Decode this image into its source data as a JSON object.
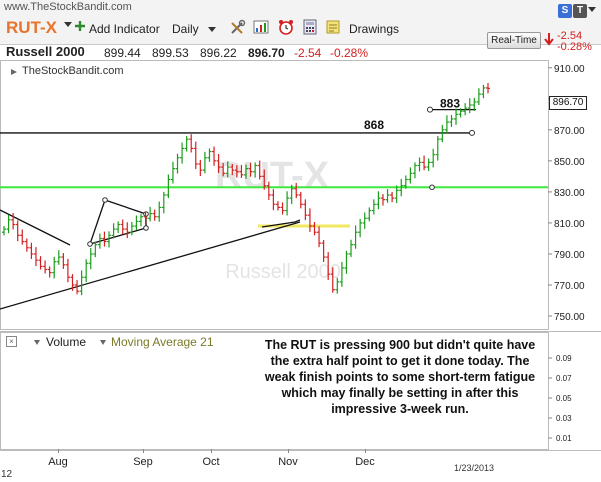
{
  "header": {
    "url": "www.TheStockBandit.com",
    "symbol": "RUT-X",
    "toolbar": {
      "add_indicator": "Add Indicator",
      "period": "Daily",
      "drawings": "Drawings"
    },
    "name": "Russell 2000",
    "open": "899.44",
    "high": "899.53",
    "low": "896.22",
    "last": "896.70",
    "change": "-2.54",
    "change_pct": "-0.28%",
    "realtime_button": "Real-Time",
    "top_icons": [
      "S",
      "T"
    ]
  },
  "chart_watermark": "TheStockBandit.com",
  "background_watermark": {
    "symbol": "RUT-X",
    "name": "Russell 2000"
  },
  "colors": {
    "up": "#1a9e1a",
    "down": "#d42020",
    "support_green": "#3ee83e",
    "support_yellow": "#f0e860",
    "trendline": "#111111"
  },
  "chart_data": {
    "type": "candlestick",
    "y_axis_ticks": [
      "910.00",
      "890.00",
      "870.00",
      "850.00",
      "830.00",
      "810.00",
      "790.00",
      "770.00",
      "750.00"
    ],
    "ylim": [
      741,
      915
    ],
    "last_price_label": "896.70",
    "x_axis_labels": [
      "Aug",
      "Sep",
      "Oct",
      "Nov",
      "Dec"
    ],
    "date_label": "1/23/2013",
    "left_partial_label": "12",
    "levels": [
      {
        "label": "868",
        "value": 868,
        "color": "black"
      },
      {
        "label": "883",
        "value": 883,
        "color": "black"
      },
      {
        "value": 833,
        "color": "green"
      },
      {
        "value": 808,
        "color": "yellow"
      }
    ],
    "closes": [
      806,
      812,
      809,
      802,
      798,
      794,
      790,
      786,
      782,
      780,
      778,
      785,
      788,
      783,
      775,
      770,
      766,
      775,
      784,
      790,
      796,
      800,
      798,
      802,
      806,
      809,
      806,
      804,
      808,
      811,
      814,
      813,
      816,
      814,
      820,
      828,
      838,
      845,
      852,
      858,
      864,
      858,
      848,
      844,
      852,
      856,
      850,
      846,
      842,
      846,
      844,
      843,
      841,
      845,
      843,
      847,
      840,
      834,
      828,
      822,
      820,
      818,
      826,
      832,
      828,
      822,
      815,
      808,
      804,
      797,
      788,
      777,
      767,
      772,
      781,
      790,
      796,
      804,
      810,
      813,
      818,
      822,
      826,
      825,
      828,
      826,
      831,
      834,
      838,
      842,
      847,
      849,
      846,
      849,
      854,
      864,
      870,
      875,
      877,
      880,
      882,
      884,
      886,
      888,
      893,
      897,
      896.7
    ]
  },
  "volume_panel": {
    "volume_label": "Volume",
    "ma_label": "Moving Average 21",
    "axis_ticks": [
      "0.09",
      "0.07",
      "0.05",
      "0.03",
      "0.01"
    ]
  },
  "annotation": "The RUT is pressing 900 but didn't quite have the extra half point to get it done today. The weak finish points to some short-term fatigue which may finally be setting in after this impressive 3-week run."
}
